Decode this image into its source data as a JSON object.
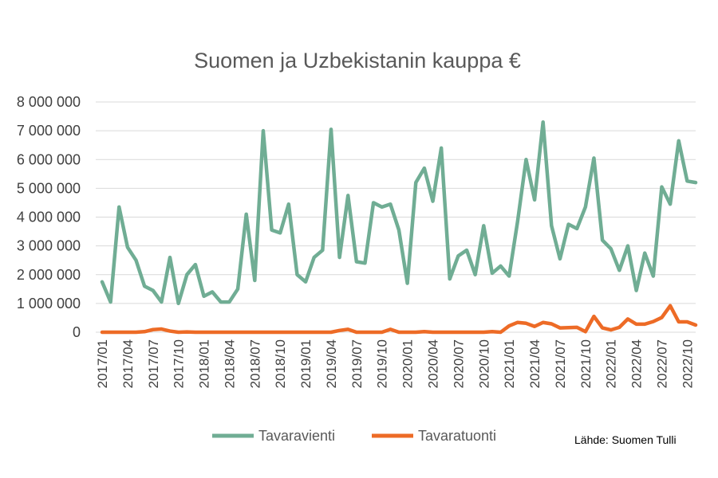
{
  "chart_data": {
    "type": "line",
    "title": "Suomen ja Uzbekistanin kauppa €",
    "xlabel": "",
    "ylabel": "",
    "ylim": [
      0,
      8000000
    ],
    "yticks": [
      0,
      1000000,
      2000000,
      3000000,
      4000000,
      5000000,
      6000000,
      7000000,
      8000000
    ],
    "ytick_labels": [
      "0",
      "1 000 000",
      "2 000 000",
      "3 000 000",
      "4 000 000",
      "5 000 000",
      "6 000 000",
      "7 000 000",
      "8 000 000"
    ],
    "grid": true,
    "legend_position": "bottom",
    "source_note": "Lähde: Suomen Tulli",
    "x_start": "2017/01",
    "x_tick_labels": [
      "2017/01",
      "2017/04",
      "2017/07",
      "2017/10",
      "2018/01",
      "2018/04",
      "2018/07",
      "2018/10",
      "2019/01",
      "2019/04",
      "2019/07",
      "2019/10",
      "2020/01",
      "2020/04",
      "2020/07",
      "2020/10",
      "2021/01",
      "2021/04",
      "2021/07",
      "2021/10",
      "2022/01",
      "2022/04",
      "2022/07",
      "2022/10"
    ],
    "series": [
      {
        "name": "Tavaravienti",
        "color": "#70ad94",
        "values": [
          1750000,
          1050000,
          4350000,
          2950000,
          2500000,
          1600000,
          1450000,
          1050000,
          2600000,
          1000000,
          2000000,
          2350000,
          1250000,
          1400000,
          1050000,
          1050000,
          1500000,
          4100000,
          1800000,
          7000000,
          3550000,
          3450000,
          4450000,
          2000000,
          1750000,
          2600000,
          2850000,
          7050000,
          2600000,
          4750000,
          2450000,
          2400000,
          4500000,
          4350000,
          4450000,
          3550000,
          1700000,
          5200000,
          5700000,
          4550000,
          6400000,
          1850000,
          2650000,
          2850000,
          2000000,
          3700000,
          2050000,
          2300000,
          1950000,
          3850000,
          6000000,
          4600000,
          7300000,
          3700000,
          2550000,
          3750000,
          3600000,
          4350000,
          6050000,
          3200000,
          2900000,
          2150000,
          3000000,
          1450000,
          2750000,
          1950000,
          5050000,
          4450000,
          6650000,
          5250000,
          5200000
        ]
      },
      {
        "name": "Tavaratuonti",
        "color": "#ed6b26",
        "values": [
          0,
          0,
          0,
          0,
          0,
          20000,
          90000,
          110000,
          40000,
          0,
          10000,
          0,
          0,
          0,
          0,
          0,
          0,
          0,
          0,
          0,
          0,
          0,
          0,
          0,
          0,
          0,
          0,
          0,
          60000,
          100000,
          0,
          0,
          0,
          0,
          100000,
          0,
          0,
          0,
          20000,
          0,
          0,
          0,
          0,
          0,
          0,
          0,
          20000,
          0,
          220000,
          340000,
          310000,
          200000,
          340000,
          290000,
          150000,
          160000,
          170000,
          20000,
          550000,
          150000,
          80000,
          170000,
          460000,
          280000,
          280000,
          370000,
          510000,
          920000,
          360000,
          360000,
          250000
        ]
      }
    ]
  }
}
